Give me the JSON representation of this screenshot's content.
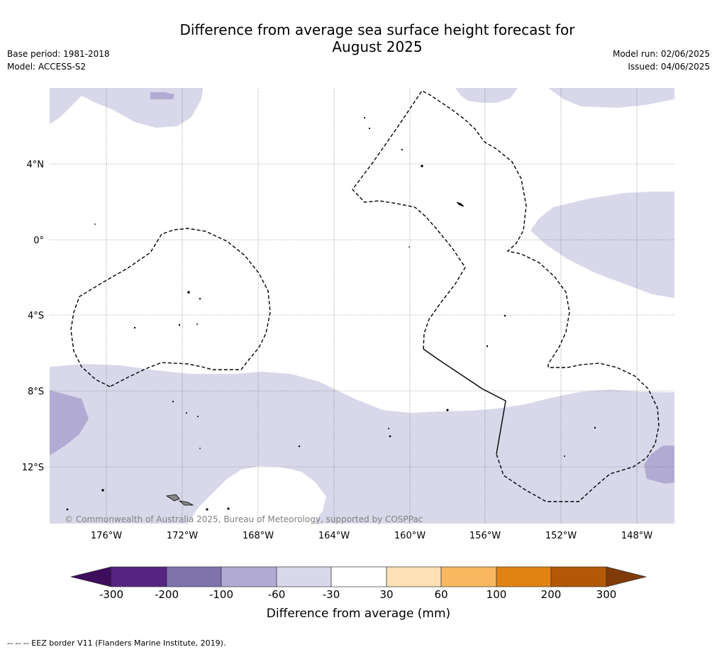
{
  "header": {
    "title_line1": "Difference from average sea surface height forecast for",
    "title_line2": "August 2025",
    "base_period": "Base period: 1981-2018",
    "model": "Model: ACCESS-S2",
    "model_run": "Model run: 02/06/2025",
    "issued": "Issued: 04/06/2025"
  },
  "map": {
    "lon_labels": [
      "176°W",
      "172°W",
      "168°W",
      "164°W",
      "160°W",
      "156°W",
      "152°W",
      "148°W"
    ],
    "lat_labels": [
      "4°N",
      "0°",
      "4°S",
      "8°S",
      "12°S"
    ],
    "copyright": "© Commonwealth of Australia 2025, Bureau of Meteorology, supported by COSPPac",
    "colors": {
      "light_purple": "#d8d8ea",
      "mid_purple": "#b1abd3"
    }
  },
  "colorbar": {
    "title": "Difference from average (mm)",
    "ticks": [
      "-300",
      "-200",
      "-100",
      "-60",
      "-30",
      "30",
      "60",
      "100",
      "200",
      "300"
    ],
    "colors": [
      "#3f0d5e",
      "#562483",
      "#8073ac",
      "#b1abd3",
      "#d8d8ea",
      "#ffffff",
      "#fee0b6",
      "#f9b860",
      "#e08214",
      "#b35806",
      "#7f3b08"
    ]
  },
  "footer": "--  --  -- EEZ border V11 (Flanders Marine Institute, 2019)."
}
